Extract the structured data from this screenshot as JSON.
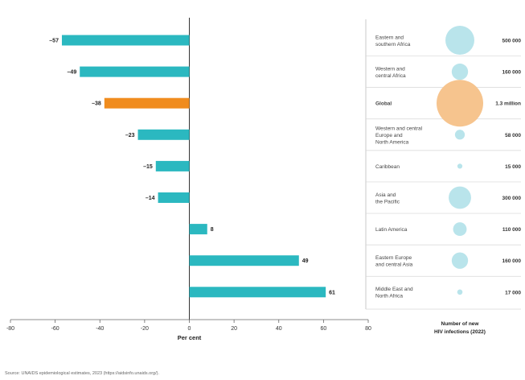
{
  "chart_data": {
    "type": "bar",
    "orientation": "horizontal",
    "categories": [
      "Eastern and southern Africa",
      "Western and central Africa",
      "Global",
      "Western and central Europe and North America",
      "Caribbean",
      "Asia and the Pacific",
      "Latin America",
      "Eastern Europe and central Asia",
      "Middle East and North Africa"
    ],
    "values": [
      -57,
      -49,
      -38,
      -23,
      -15,
      -14,
      8,
      49,
      61
    ],
    "value_labels": [
      "–57",
      "–49",
      "–38",
      "–23",
      "–15",
      "–14",
      "8",
      "49",
      "61"
    ],
    "highlight_category": "Global",
    "xlim": [
      -80,
      80
    ],
    "xticks": [
      -80,
      -60,
      -40,
      -20,
      0,
      20,
      40,
      60,
      80
    ],
    "xlabel": "Per cent",
    "grid": false,
    "colors": {
      "bar": "#2bb8c0",
      "highlight": "#f08c1e",
      "bubble": "#b9e4eb",
      "bubble_highlight": "#f6c48e"
    },
    "bubble_panel": {
      "title_line1": "Number of new",
      "title_line2": "HIV infections (2022)",
      "rows": [
        {
          "label_lines": [
            "Eastern and",
            "southern Africa"
          ],
          "value": 500000,
          "value_label": "500 000"
        },
        {
          "label_lines": [
            "Western and",
            "central Africa"
          ],
          "value": 160000,
          "value_label": "160 000"
        },
        {
          "label_lines": [
            "Global"
          ],
          "value": 1300000,
          "value_label": "1.3 million"
        },
        {
          "label_lines": [
            "Western and central",
            "Europe and",
            "North America"
          ],
          "value": 58000,
          "value_label": "58 000"
        },
        {
          "label_lines": [
            "Caribbean"
          ],
          "value": 15000,
          "value_label": "15 000"
        },
        {
          "label_lines": [
            "Asia and",
            "the Pacific"
          ],
          "value": 300000,
          "value_label": "300 000"
        },
        {
          "label_lines": [
            "Latin America"
          ],
          "value": 110000,
          "value_label": "110 000"
        },
        {
          "label_lines": [
            "Eastern Europe",
            "and central Asia"
          ],
          "value": 160000,
          "value_label": "160 000"
        },
        {
          "label_lines": [
            "Middle East and",
            "North Africa"
          ],
          "value": 17000,
          "value_label": "17 000"
        }
      ]
    }
  },
  "source": "Source: UNAIDS epidemiological estimates, 2023 (https://aidsinfo.unaids.org/)."
}
